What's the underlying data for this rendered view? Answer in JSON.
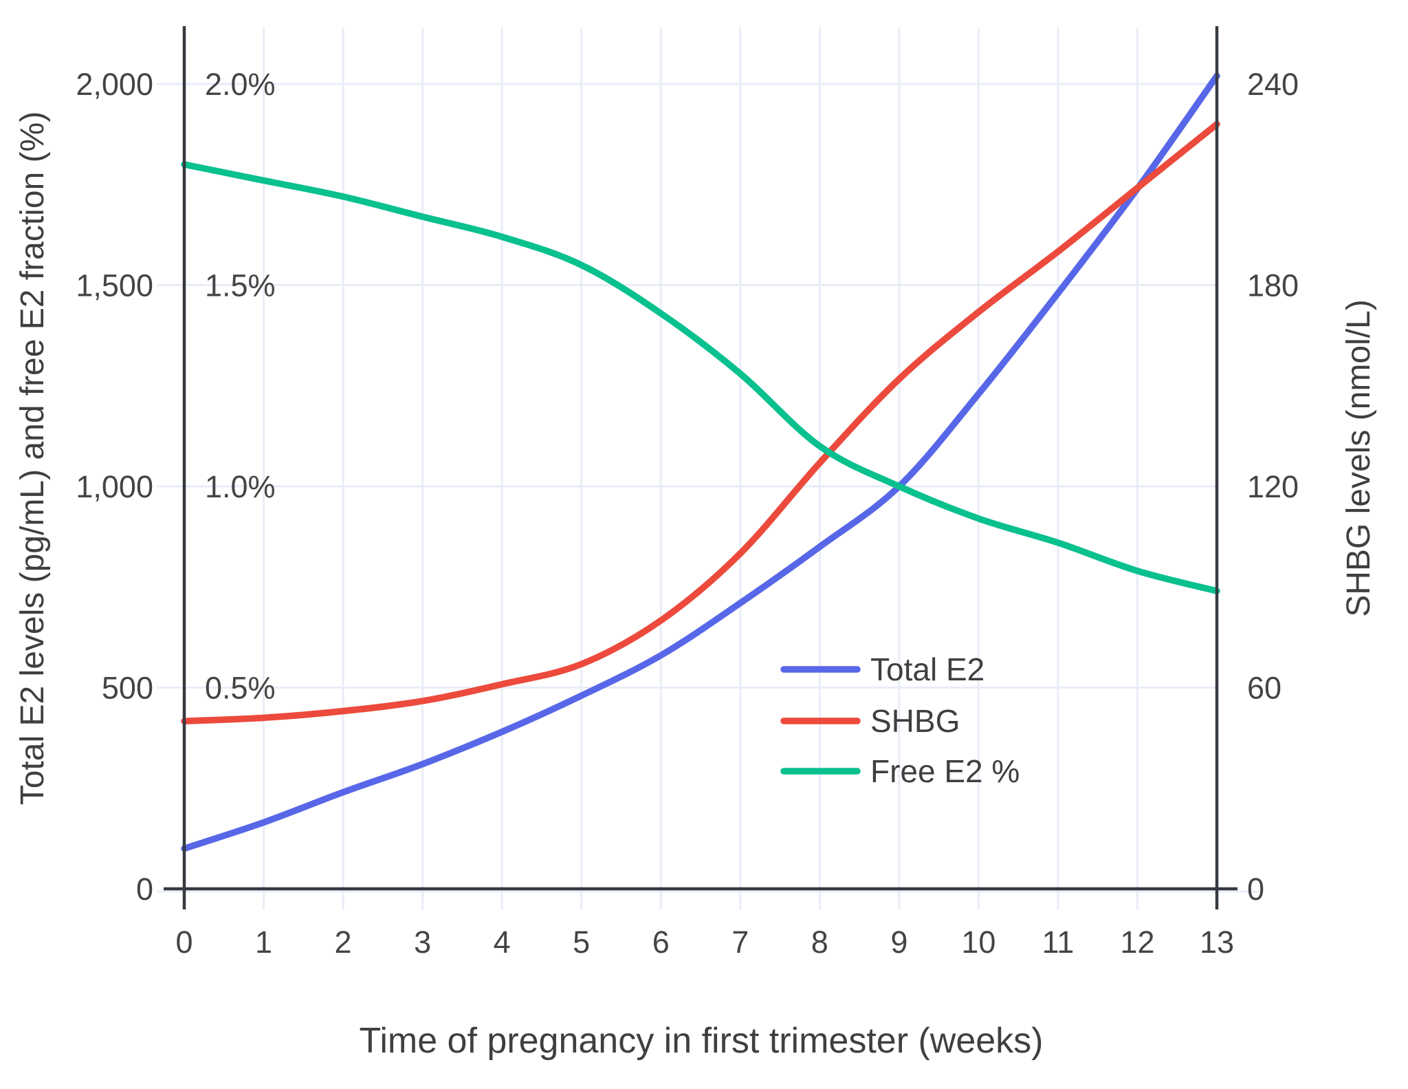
{
  "chart_data": {
    "type": "line",
    "title": "",
    "xlabel": "Time of pregnancy in first trimester (weeks)",
    "ylabel_left": "Total E2 levels (pg/mL) and free E2 fraction (%)",
    "ylabel_right": "SHBG levels (nmol/L)",
    "x": [
      0,
      1,
      2,
      3,
      4,
      5,
      6,
      7,
      8,
      9,
      10,
      11,
      12,
      13
    ],
    "x_tick_labels": [
      "0",
      "1",
      "2",
      "3",
      "4",
      "5",
      "6",
      "7",
      "8",
      "9",
      "10",
      "11",
      "12",
      "13"
    ],
    "x_range": [
      0,
      13
    ],
    "y_left_range": [
      0,
      2140
    ],
    "y_right_range": [
      0,
      256.8
    ],
    "grid": true,
    "y_left_ticks": [
      {
        "v": 0,
        "label": "0"
      },
      {
        "v": 500,
        "label": "500"
      },
      {
        "v": 1000,
        "label": "1,000"
      },
      {
        "v": 1500,
        "label": "1,500"
      },
      {
        "v": 2000,
        "label": "2,000"
      }
    ],
    "free_e2_inner_ticks": [
      {
        "v": 500,
        "label": "0.5%"
      },
      {
        "v": 1000,
        "label": "1.0%"
      },
      {
        "v": 1500,
        "label": "1.5%"
      },
      {
        "v": 2000,
        "label": "2.0%"
      }
    ],
    "y_right_ticks": [
      {
        "v": 0,
        "label": "0"
      },
      {
        "v": 60,
        "label": "60"
      },
      {
        "v": 120,
        "label": "120"
      },
      {
        "v": 180,
        "label": "180"
      },
      {
        "v": 240,
        "label": "240"
      }
    ],
    "legend_position": "inside-right-middle",
    "series": [
      {
        "name": "Total E2",
        "axis": "left",
        "unit": "pg/mL",
        "color": "#5767E8",
        "values": [
          100,
          165,
          240,
          310,
          390,
          480,
          580,
          710,
          850,
          1000,
          1230,
          1480,
          1740,
          2020
        ]
      },
      {
        "name": "SHBG",
        "axis": "right",
        "unit": "nmol/L",
        "color": "#EC4A3C",
        "values": [
          50,
          51,
          53,
          56,
          61,
          67,
          80,
          100,
          127,
          152,
          172,
          190,
          209,
          228
        ]
      },
      {
        "name": "Free E2 %",
        "axis": "left-percent",
        "unit": "%",
        "color": "#09C08F",
        "values": [
          1.8,
          1.76,
          1.72,
          1.67,
          1.62,
          1.55,
          1.43,
          1.28,
          1.1,
          1.0,
          0.92,
          0.86,
          0.79,
          0.74
        ]
      }
    ],
    "colors": {
      "grid": "#E9EDF8",
      "axis_line": "#363A40",
      "tick_text": "#444444",
      "title_text": "#3F3F3F",
      "background": "#FFFFFF"
    }
  }
}
